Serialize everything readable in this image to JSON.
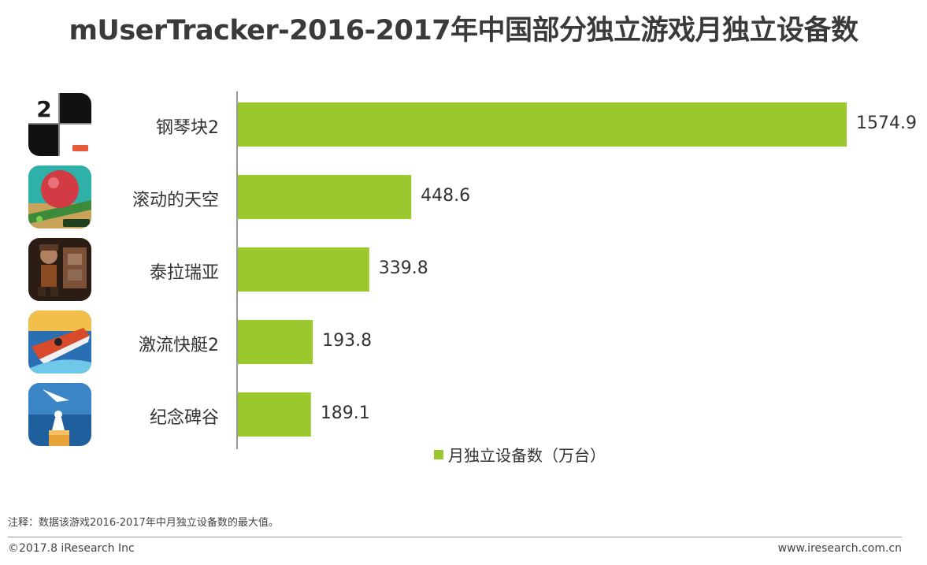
{
  "title": "mUserTracker-2016-2017年中国部分独立游戏月独立设备数",
  "chart_data": {
    "type": "bar",
    "orientation": "horizontal",
    "categories": [
      "钢琴块2",
      "滚动的天空",
      "泰拉瑞亚",
      "激流快艇2",
      "纪念碑谷"
    ],
    "series": [
      {
        "name": "月独立设备数（万台）",
        "values": [
          1574.9,
          448.6,
          339.8,
          193.8,
          189.1
        ]
      }
    ],
    "value_labels": [
      "1574.9",
      "448.6",
      "339.8",
      "193.8",
      "189.1"
    ],
    "xlim": [
      0,
      1574.9
    ],
    "grid": false,
    "legend_placement": "bottom",
    "bar_color": "#9BC72F",
    "icons": [
      "piano-tiles-2-icon",
      "rolling-sky-icon",
      "terraria-icon",
      "riptide-gp2-icon",
      "monument-valley-icon"
    ]
  },
  "note": "注释：数据该游戏2016-2017年中月独立设备数的最大值。",
  "footer": {
    "copyright": "©2017.8 iResearch Inc",
    "website": "www.iresearch.com.cn"
  }
}
